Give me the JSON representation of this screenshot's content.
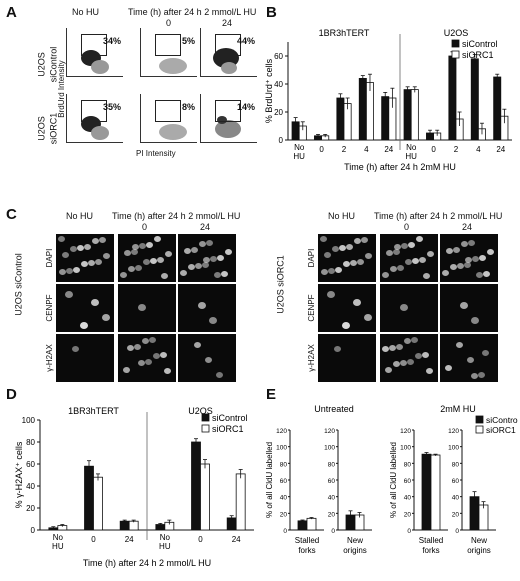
{
  "panels": {
    "A": {
      "letter": "A",
      "col_headers": [
        "No HU",
        "Time (h) after 24 h 2 mmol/L HU",
        "0",
        "24"
      ],
      "rows": [
        {
          "line1": "U2OS",
          "line2": "siControl",
          "percents": [
            "34%",
            "5%",
            "44%"
          ]
        },
        {
          "line1": "U2OS",
          "line2": "siORC1",
          "percents": [
            "35%",
            "8%",
            "14%"
          ]
        }
      ],
      "ylabel": "BrdUrd Intensity",
      "xlabel": "PI Intensity"
    },
    "C": {
      "letter": "C",
      "left": {
        "row_group": "U2OS siControl",
        "col_headers": [
          "No HU",
          "Time (h) after 24 h 2 mmol/L HU",
          "0",
          "24"
        ],
        "stains": [
          "DAPI",
          "CENPF",
          "γ-H2AX"
        ]
      },
      "right": {
        "row_group": "U2OS siORC1",
        "col_headers": [
          "No HU",
          "Time (h) after 24 h 2 mmol/L HU",
          "0",
          "24"
        ],
        "stains": [
          "DAPI",
          "CENPF",
          "γ-H2AX"
        ]
      }
    }
  },
  "chart_data": [
    {
      "panel": "B",
      "type": "bar",
      "groups": [
        "1BR3hTERT",
        "U2OS"
      ],
      "categories": [
        "No HU",
        "0",
        "2",
        "4",
        "24",
        "No HU",
        "0",
        "2",
        "4",
        "24"
      ],
      "series": [
        {
          "name": "siControl",
          "values": [
            13,
            3,
            30,
            44,
            31,
            36,
            5,
            60,
            58,
            45
          ],
          "errors": [
            3,
            1,
            3,
            2,
            3,
            2,
            2,
            3,
            3,
            2
          ],
          "color": "#111111"
        },
        {
          "name": "siORC1",
          "values": [
            10,
            3,
            26,
            41,
            30,
            36,
            5,
            15,
            8,
            17
          ],
          "errors": [
            3,
            1,
            4,
            6,
            7,
            2,
            2,
            5,
            4,
            5
          ],
          "color": "#ffffff"
        }
      ],
      "ylabel": "% BrdUrd⁺ cells",
      "xlabel": "Time (h) after 24 h 2mM HU",
      "ylim": [
        0,
        70
      ],
      "yticks": [
        0,
        20,
        40,
        60
      ],
      "legend": "top-right"
    },
    {
      "panel": "D",
      "type": "bar",
      "groups": [
        "1BR3hTERT",
        "U2OS"
      ],
      "categories": [
        "No HU",
        "0",
        "24",
        "No HU",
        "0",
        "24"
      ],
      "series": [
        {
          "name": "siControl",
          "values": [
            2,
            58,
            8,
            5,
            80,
            11
          ],
          "errors": [
            1,
            5,
            1,
            1,
            3,
            2
          ],
          "color": "#111111"
        },
        {
          "name": "siORC1",
          "values": [
            4,
            48,
            8,
            7,
            60,
            51
          ],
          "errors": [
            1,
            3,
            1,
            2,
            4,
            4
          ],
          "color": "#ffffff"
        }
      ],
      "ylabel": "% γ-H2AX⁺ cells",
      "xlabel": "Time (h) after 24 h 2 mmol/L HU",
      "ylim": [
        0,
        100
      ],
      "yticks": [
        0,
        20,
        40,
        60,
        80,
        100
      ],
      "legend": "top-right"
    },
    {
      "panel": "E-untreated",
      "type": "bar",
      "title": "Untreated",
      "subcharts": [
        {
          "category": "Stalled forks",
          "ylim": [
            0,
            120
          ],
          "yticks": [
            0,
            20,
            40,
            60,
            80,
            100,
            120
          ],
          "values": {
            "siControl": 11,
            "siORC1": 14
          },
          "errors": {
            "siControl": 1,
            "siORC1": 1
          }
        },
        {
          "category": "New origins",
          "ylim": [
            0,
            120
          ],
          "yticks": [
            0,
            20,
            40,
            60,
            80,
            100,
            120
          ],
          "values": {
            "siControl": 18,
            "siORC1": 18
          },
          "errors": {
            "siControl": 5,
            "siORC1": 3
          }
        }
      ],
      "ylabel": "% of all CldU labelled"
    },
    {
      "panel": "E-2mM",
      "type": "bar",
      "title": "2mM HU",
      "subcharts": [
        {
          "category": "Stalled forks",
          "ylim": [
            0,
            120
          ],
          "yticks": [
            0,
            20,
            40,
            60,
            80,
            100,
            120
          ],
          "values": {
            "siControl": 91,
            "siORC1": 90
          },
          "errors": {
            "siControl": 2,
            "siORC1": 1
          }
        },
        {
          "category": "New origins",
          "ylim": [
            0,
            120
          ],
          "yticks": [
            0,
            20,
            40,
            60,
            80,
            100,
            120
          ],
          "values": {
            "siControl": 40,
            "siORC1": 30
          },
          "errors": {
            "siControl": 6,
            "siORC1": 4
          }
        }
      ],
      "ylabel": "% of all CldU labelled",
      "legend_labels": [
        "siControl",
        "siORC1"
      ]
    }
  ],
  "labels": {
    "B": "B",
    "D": "D",
    "E": "E"
  }
}
